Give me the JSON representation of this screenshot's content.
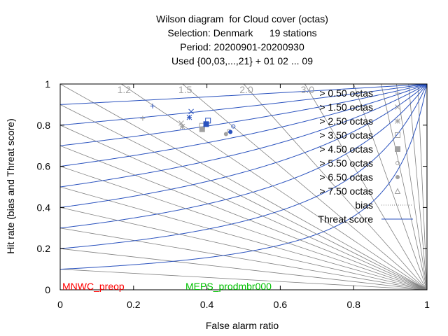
{
  "chart_data": {
    "type": "scatter",
    "title_lines": [
      "Wilson diagram  for Cloud cover (octas)",
      "Selection: Denmark      19 stations",
      "Period: 20200901-20200930",
      "Used {00,03,...,21} + 01 02 ... 09"
    ],
    "xlabel": "False alarm ratio",
    "ylabel": "Hit rate (bias and Threat score)",
    "xlim": [
      0,
      1
    ],
    "ylim": [
      0,
      1
    ],
    "x_ticks": [
      "0",
      "0.2",
      "0.4",
      "0.6",
      "0.8",
      "1"
    ],
    "y_ticks": [
      "0",
      "0.2",
      "0.4",
      "0.6",
      "0.8",
      "1"
    ],
    "bias_lines": [
      1.2,
      1.5,
      2.0,
      3.0,
      5,
      8,
      12,
      20,
      40
    ],
    "bias_labels": [
      {
        "bias": 1.2,
        "text": "1.2"
      },
      {
        "bias": 1.5,
        "text": "1.5"
      },
      {
        "bias": 2.0,
        "text": "2.0"
      },
      {
        "bias": 3.0,
        "text": "3.0"
      }
    ],
    "threat_scores": [
      0.1,
      0.2,
      0.3,
      0.4,
      0.5,
      0.6,
      0.7,
      0.8,
      0.9
    ],
    "legend": {
      "placement": "right",
      "entries": [
        {
          "label": "> 0.50 octas",
          "marker": "plus"
        },
        {
          "label": "> 1.50 octas",
          "marker": "cross"
        },
        {
          "label": "> 2.50 octas",
          "marker": "star"
        },
        {
          "label": "> 3.50 octas",
          "marker": "open-square"
        },
        {
          "label": "> 4.50 octas",
          "marker": "filled-square"
        },
        {
          "label": "> 5.50 octas",
          "marker": "open-circle"
        },
        {
          "label": "> 6.50 octas",
          "marker": "filled-circle"
        },
        {
          "label": "> 7.50 octas",
          "marker": "open-triangle"
        },
        {
          "label": "bias",
          "marker": "dotted-line"
        },
        {
          "label": "Threat score",
          "marker": "solid-line"
        }
      ]
    },
    "series": [
      {
        "name": "MNWC_preop",
        "color": "#a0a0a0",
        "points": [
          {
            "marker": "plus",
            "x": 0.225,
            "y": 0.833
          },
          {
            "marker": "cross",
            "x": 0.33,
            "y": 0.81
          },
          {
            "marker": "star",
            "x": 0.333,
            "y": 0.793
          },
          {
            "marker": "open-square",
            "x": 0.387,
            "y": 0.797
          },
          {
            "marker": "filled-square",
            "x": 0.387,
            "y": 0.78
          },
          {
            "marker": "open-circle",
            "x": 0.46,
            "y": 0.772
          },
          {
            "marker": "filled-circle",
            "x": 0.452,
            "y": 0.757
          }
        ]
      },
      {
        "name": "MEPS_prodmbr000",
        "color": "#2a52be",
        "points": [
          {
            "marker": "plus",
            "x": 0.252,
            "y": 0.893
          },
          {
            "marker": "cross",
            "x": 0.357,
            "y": 0.866
          },
          {
            "marker": "star",
            "x": 0.352,
            "y": 0.838
          },
          {
            "marker": "open-square",
            "x": 0.403,
            "y": 0.822
          },
          {
            "marker": "filled-square",
            "x": 0.398,
            "y": 0.805
          },
          {
            "marker": "open-circle",
            "x": 0.472,
            "y": 0.794
          },
          {
            "marker": "filled-circle",
            "x": 0.464,
            "y": 0.767
          }
        ]
      }
    ],
    "model_labels": [
      {
        "text": "MNWC_preop",
        "color": "#ff0000"
      },
      {
        "text": "MEPS_prodmbr000",
        "color": "#00c000"
      }
    ]
  }
}
